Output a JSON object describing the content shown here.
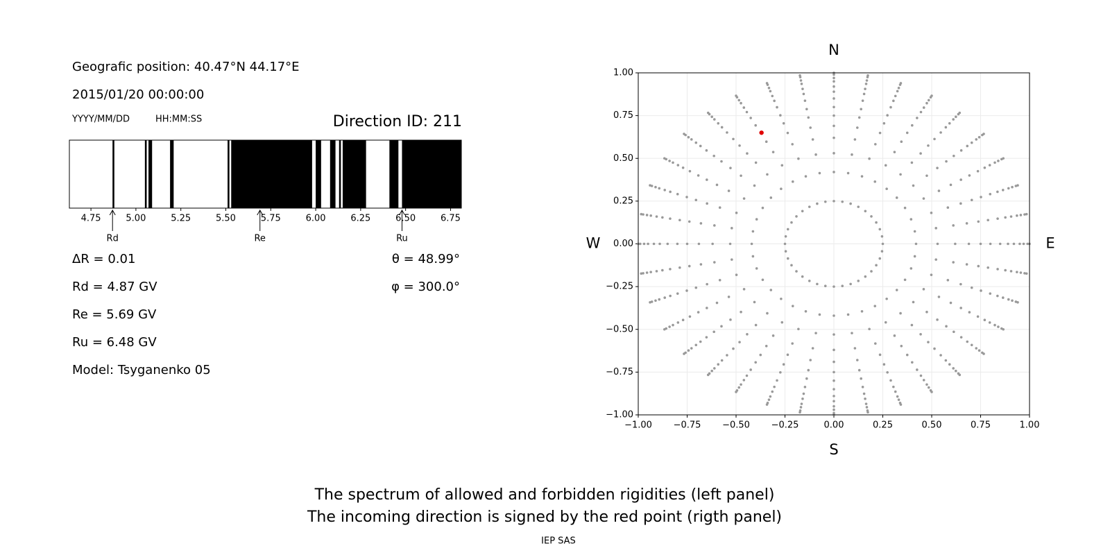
{
  "info": {
    "position": "Geografic position: 40.47°N 44.17°E",
    "datetime": "2015/01/20 00:00:00",
    "date_format": "YYYY/MM/DD",
    "time_format": "HH:MM:SS",
    "direction": "Direction ID: 211",
    "delta_r": "ΔR = 0.01",
    "theta": "θ = 48.99°",
    "rd": "Rd = 4.87 GV",
    "phi": "φ = 300.0°",
    "re": "Re = 5.69 GV",
    "ru": "Ru = 6.48 GV",
    "model": "Model: Tsyganenko 05"
  },
  "chart_data": [
    {
      "type": "band",
      "color": "#000000",
      "xlim": [
        4.63,
        6.81
      ],
      "xticks": [
        4.75,
        {
          "value": 5.0,
          "label": "5.00"
        },
        5.25,
        {
          "value": 5.5,
          "label": "5.50"
        },
        5.75,
        {
          "value": 6.0,
          "label": "6.00"
        },
        6.25,
        {
          "value": 6.5,
          "label": "6.50"
        },
        6.75
      ],
      "bands": [
        [
          4.87,
          4.88
        ],
        [
          5.05,
          5.06
        ],
        [
          5.07,
          5.09
        ],
        [
          5.19,
          5.21
        ],
        [
          5.51,
          5.52
        ],
        [
          5.53,
          5.98
        ],
        [
          6.0,
          6.03
        ],
        [
          6.08,
          6.11
        ],
        [
          6.13,
          6.14
        ],
        [
          6.15,
          6.28
        ],
        [
          6.41,
          6.46
        ],
        [
          6.48,
          6.81
        ]
      ],
      "markers": [
        {
          "label": "Rd",
          "value": 4.87
        },
        {
          "label": "Re",
          "value": 5.69
        },
        {
          "label": "Ru",
          "value": 6.48
        }
      ]
    },
    {
      "type": "scatter",
      "grid": true,
      "xlim": [
        -1,
        1
      ],
      "ylim": [
        -1,
        1
      ],
      "xticks": [
        {
          "value": -1,
          "label": "−1.00"
        },
        {
          "value": -0.75,
          "label": "−0.75"
        },
        {
          "value": -0.5,
          "label": "−0.50"
        },
        {
          "value": -0.25,
          "label": "−0.25"
        },
        {
          "value": 0,
          "label": "0.00"
        },
        {
          "value": 0.25,
          "label": "0.25"
        },
        {
          "value": 0.5,
          "label": "0.50"
        },
        {
          "value": 0.75,
          "label": "0.75"
        },
        {
          "value": 1,
          "label": "1.00"
        }
      ],
      "yticks": [
        {
          "value": -1,
          "label": "−1.00"
        },
        {
          "value": -0.75,
          "label": "−0.75"
        },
        {
          "value": -0.5,
          "label": "−0.50"
        },
        {
          "value": -0.25,
          "label": "−0.25"
        },
        {
          "value": 0,
          "label": "0.00"
        },
        {
          "value": 0.25,
          "label": "0.25"
        },
        {
          "value": 0.5,
          "label": "0.50"
        },
        {
          "value": 0.75,
          "label": "0.75"
        },
        {
          "value": 1,
          "label": "1.00"
        }
      ],
      "north": "N",
      "south": "S",
      "east": "E",
      "west": "W",
      "directions": {
        "color": "#999999",
        "azimuths_deg": [
          0,
          10,
          20,
          30,
          40,
          50,
          60,
          70,
          80,
          90,
          100,
          110,
          120,
          130,
          140,
          150,
          160,
          170,
          180,
          190,
          200,
          210,
          220,
          230,
          240,
          250,
          260,
          270,
          280,
          290,
          300,
          310,
          320,
          330,
          340,
          350
        ],
        "radii": [
          0.25,
          0.42,
          0.53,
          0.62,
          0.69,
          0.75,
          0.8,
          0.85,
          0.89,
          0.92,
          0.95,
          0.97,
          0.99,
          1.0
        ]
      },
      "selected": {
        "x": -0.37,
        "y": 0.65,
        "color": "#e00000"
      }
    }
  ],
  "caption": [
    "The spectrum of allowed and forbidden rigidities (left panel)",
    "The incoming direction is signed by the red point (rigth panel)"
  ],
  "footer": "IEP SAS"
}
